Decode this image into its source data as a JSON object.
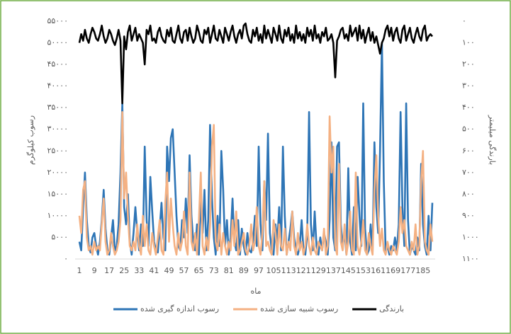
{
  "chart_data": {
    "type": "line",
    "x_label": "ماه",
    "y_label": "رسوب کیلوگرم",
    "y2_label": "بارندگی میلیمتر",
    "categories": [
      "1",
      null,
      null,
      null,
      null,
      null,
      null,
      null,
      "9",
      null,
      null,
      null,
      null,
      null,
      null,
      null,
      "17",
      null,
      null,
      null,
      null,
      null,
      null,
      null,
      "25",
      null,
      null,
      null,
      null,
      null,
      null,
      null,
      "33",
      null,
      null,
      null,
      null,
      null,
      null,
      null,
      "41",
      null,
      null,
      null,
      null,
      null,
      null,
      null,
      "49",
      null,
      null,
      null,
      null,
      null,
      null,
      null,
      "57",
      null,
      null,
      null,
      null,
      null,
      null,
      null,
      "65",
      null,
      null,
      null,
      null,
      null,
      null,
      null,
      "73",
      null,
      null,
      null,
      null,
      null,
      null,
      null,
      "81",
      null,
      null,
      null,
      null,
      null,
      null,
      null,
      "89",
      null,
      null,
      null,
      null,
      null,
      null,
      null,
      "97",
      null,
      null,
      null,
      null,
      null,
      null,
      null,
      "105",
      null,
      null,
      null,
      null,
      null,
      null,
      null,
      "113",
      null,
      null,
      null,
      null,
      null,
      null,
      null,
      "121",
      null,
      null,
      null,
      null,
      null,
      null,
      null,
      "129",
      null,
      null,
      null,
      null,
      null,
      null,
      null,
      "137",
      null,
      null,
      null,
      null,
      null,
      null,
      null,
      "145",
      null,
      null,
      null,
      null,
      null,
      null,
      null,
      "153",
      null,
      null,
      null,
      null,
      null,
      null,
      null,
      "161",
      null,
      null,
      null,
      null,
      null,
      null,
      null,
      "169",
      null,
      null,
      null,
      null,
      null,
      null,
      null,
      "177",
      null,
      null,
      null,
      null,
      null,
      null,
      null,
      "185",
      null,
      null,
      null,
      null,
      null
    ],
    "series": [
      {
        "name": "رسوب اندازه گیری شده",
        "color": "#2e75b6",
        "values": [
          4000,
          2000,
          12000,
          20000,
          9000,
          3000,
          1500,
          5000,
          6000,
          3000,
          1000,
          4000,
          9000,
          16000,
          7000,
          2000,
          1000,
          5000,
          9000,
          2000,
          3000,
          8000,
          20000,
          36000,
          12000,
          8000,
          15000,
          4000,
          1000,
          6000,
          12000,
          6000,
          2000,
          8000,
          3000,
          26000,
          9000,
          3000,
          19000,
          11000,
          4000,
          2000,
          1500,
          7000,
          13000,
          5000,
          2000,
          26000,
          18000,
          28000,
          30000,
          20000,
          10000,
          3000,
          2000,
          9000,
          5000,
          14000,
          6000,
          24000,
          10000,
          4000,
          2000,
          8000,
          1000,
          14000,
          6000,
          16000,
          2000,
          9000,
          31000,
          14000,
          5000,
          1000,
          10000,
          3000,
          25000,
          16000,
          3000,
          9000,
          1000,
          5000,
          14000,
          4000,
          2000,
          9000,
          1000,
          7000,
          3000,
          1000,
          6000,
          2000,
          1500,
          4000,
          10000,
          3000,
          26000,
          8000,
          2000,
          18000,
          9000,
          29000,
          6000,
          2000,
          1000,
          8000,
          4000,
          12000,
          2000,
          26000,
          10000,
          1000,
          4000,
          7000,
          11000,
          5000,
          2000,
          1000,
          3000,
          9000,
          2000,
          1000,
          6000,
          34000,
          8000,
          2000,
          11000,
          3000,
          1000,
          5000,
          2000,
          6000,
          4000,
          1000,
          9000,
          27000,
          5000,
          2000,
          26000,
          27000,
          8000,
          3000,
          6000,
          1000,
          21000,
          4000,
          1000,
          12000,
          2000,
          19000,
          10000,
          3000,
          36000,
          7000,
          1000,
          2000,
          8000,
          1500,
          27000,
          12000,
          6000,
          25000,
          50000,
          18000,
          2000,
          3000,
          1000,
          3000,
          2000,
          5000,
          2000,
          8000,
          34000,
          12000,
          3000,
          36000,
          9000,
          1000,
          3000,
          2000,
          1000,
          5000,
          2000,
          22000,
          8000,
          3000,
          1000,
          10000,
          2000,
          13000
        ]
      },
      {
        "name": "رسوب شبیه سازی شده",
        "color": "#f4b183",
        "values": [
          10000,
          6000,
          16000,
          18000,
          5000,
          2000,
          3000,
          1000,
          4000,
          2000,
          3000,
          2000,
          8000,
          14000,
          4000,
          1000,
          2000,
          6000,
          3000,
          1000,
          2000,
          4000,
          9000,
          34000,
          14000,
          20000,
          10000,
          3000,
          2000,
          4000,
          2000,
          8000,
          3000,
          1000,
          10000,
          3000,
          8000,
          2000,
          1000,
          6000,
          3000,
          1000,
          5000,
          9000,
          2000,
          1000,
          13000,
          20000,
          4000,
          14000,
          8000,
          3000,
          1000,
          6000,
          2000,
          4000,
          11000,
          3000,
          1000,
          20000,
          4000,
          2000,
          6000,
          1000,
          9000,
          20000,
          3000,
          1000,
          5000,
          2000,
          8000,
          26000,
          31000,
          4000,
          2000,
          8000,
          1000,
          6000,
          3000,
          1000,
          4000,
          2000,
          9000,
          3000,
          11000,
          1000,
          2000,
          4000,
          6000,
          2000,
          1000,
          3000,
          8000,
          2000,
          4000,
          12000,
          3000,
          1000,
          6000,
          18000,
          3000,
          4000,
          2000,
          1000,
          9000,
          6000,
          1000,
          8000,
          3000,
          2000,
          7000,
          1000,
          4000,
          2000,
          11000,
          3000,
          1000,
          6000,
          2000,
          4000,
          1000,
          3000,
          8000,
          3000,
          1000,
          5000,
          2000,
          1000,
          4000,
          3000,
          2000,
          7000,
          1000,
          3000,
          33000,
          20000,
          26000,
          3000,
          1000,
          22000,
          4000,
          2000,
          8000,
          1000,
          4000,
          11000,
          2000,
          1000,
          20000,
          3000,
          1000,
          4000,
          9000,
          2000,
          1000,
          6000,
          3000,
          1000,
          16000,
          24000,
          10000,
          3000,
          7000,
          2000,
          1000,
          4000,
          2000,
          1000,
          3000,
          2000,
          1000,
          4000,
          12000,
          6000,
          9000,
          3000,
          2000,
          1000,
          4000,
          2000,
          8000,
          1000,
          3000,
          18000,
          25000,
          4000,
          2000,
          1000,
          8000,
          4000
        ]
      },
      {
        "name": "بارندگی",
        "color": "#000000",
        "axis": "y2",
        "values": [
          100,
          60,
          90,
          40,
          80,
          100,
          60,
          30,
          50,
          80,
          90,
          60,
          20,
          70,
          100,
          80,
          40,
          60,
          90,
          110,
          80,
          40,
          90,
          380,
          70,
          130,
          50,
          20,
          90,
          60,
          30,
          90,
          60,
          80,
          100,
          200,
          40,
          60,
          20,
          90,
          80,
          100,
          50,
          30,
          70,
          90,
          100,
          40,
          70,
          30,
          90,
          100,
          60,
          20,
          80,
          100,
          50,
          40,
          90,
          30,
          70,
          100,
          80,
          20,
          50,
          90,
          100,
          40,
          60,
          30,
          100,
          60,
          20,
          80,
          90,
          40,
          70,
          100,
          30,
          60,
          90,
          50,
          20,
          70,
          100,
          60,
          40,
          80,
          20,
          10,
          60,
          90,
          100,
          40,
          70,
          30,
          90,
          60,
          100,
          20,
          80,
          40,
          70,
          100,
          30,
          60,
          90,
          20,
          80,
          100,
          40,
          70,
          30,
          90,
          60,
          100,
          20,
          80,
          50,
          90,
          60,
          100,
          30,
          70,
          40,
          90,
          20,
          80,
          60,
          100,
          50,
          70,
          30,
          90,
          80,
          60,
          100,
          260,
          90,
          70,
          40,
          30,
          80,
          60,
          90,
          20,
          70,
          50,
          30,
          90,
          20,
          80,
          40,
          100,
          60,
          30,
          90,
          50,
          100,
          70,
          110,
          150,
          100,
          80,
          40,
          20,
          70,
          30,
          90,
          50,
          30,
          80,
          100,
          40,
          20,
          90,
          60,
          30,
          80,
          100,
          60,
          30,
          70,
          90,
          40,
          20,
          90,
          70,
          60,
          70
        ]
      }
    ],
    "ylim": [
      0,
      55000
    ],
    "yticks": [
      {
        "value": 0,
        "label": "۰"
      },
      {
        "value": 5000,
        "label": "۵۰۰۰"
      },
      {
        "value": 10000,
        "label": "۱۰۰۰۰"
      },
      {
        "value": 15000,
        "label": "۱۵۰۰۰"
      },
      {
        "value": 20000,
        "label": "۲۰۰۰۰"
      },
      {
        "value": 25000,
        "label": "۲۵۰۰۰"
      },
      {
        "value": 30000,
        "label": "۳۰۰۰۰"
      },
      {
        "value": 35000,
        "label": "۳۵۰۰۰"
      },
      {
        "value": 40000,
        "label": "۴۰۰۰۰"
      },
      {
        "value": 45000,
        "label": "۴۵۰۰۰"
      },
      {
        "value": 50000,
        "label": "۵۰۰۰۰"
      },
      {
        "value": 55000,
        "label": "۵۵۰۰۰"
      }
    ],
    "y2lim": [
      1100,
      0
    ],
    "y2ticks": [
      {
        "value": 0,
        "label": "۰"
      },
      {
        "value": 100,
        "label": "۱۰۰"
      },
      {
        "value": 200,
        "label": "۲۰۰"
      },
      {
        "value": 300,
        "label": "۳۰۰"
      },
      {
        "value": 400,
        "label": "۴۰۰"
      },
      {
        "value": 500,
        "label": "۵۰۰"
      },
      {
        "value": 600,
        "label": "۶۰۰"
      },
      {
        "value": 700,
        "label": "۷۰۰"
      },
      {
        "value": 800,
        "label": "۸۰۰"
      },
      {
        "value": 900,
        "label": "۹۰۰"
      },
      {
        "value": 1000,
        "label": "۱۰۰۰"
      },
      {
        "value": 1100,
        "label": "۱۱۰۰"
      }
    ],
    "legend": "bottom"
  }
}
